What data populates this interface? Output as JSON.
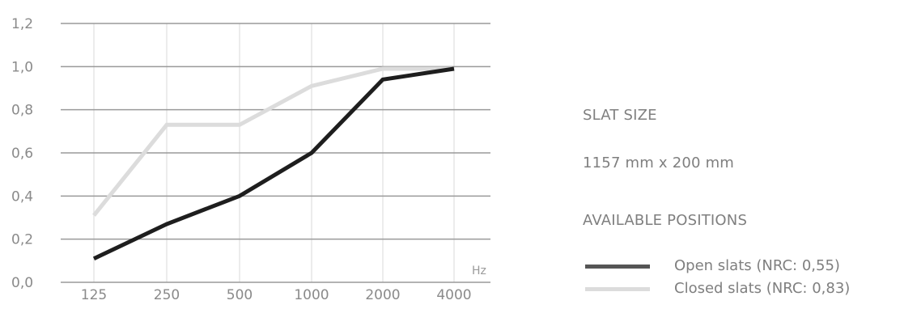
{
  "chart_data": {
    "type": "line",
    "categories": [
      "125",
      "250",
      "500",
      "1000",
      "2000",
      "4000"
    ],
    "y_ticks": [
      "0,0",
      "0,2",
      "0,4",
      "0,6",
      "0,8",
      "1,0",
      "1,2"
    ],
    "ylim": [
      0,
      1.2
    ],
    "x_unit": "Hz",
    "grid": true,
    "series": [
      {
        "name": "Open slats (NRC: 0,55)",
        "color": "#1e1e1e",
        "values": [
          0.11,
          0.27,
          0.4,
          0.6,
          0.94,
          0.99
        ]
      },
      {
        "name": "Closed slats (NRC: 0,83)",
        "color": "#dcdcdc",
        "values": [
          0.31,
          0.73,
          0.73,
          0.91,
          0.99,
          0.99
        ]
      }
    ]
  },
  "info": {
    "slat_size_heading": "SLAT SIZE",
    "slat_size_value": "1157 mm x 200 mm",
    "positions_heading": "AVAILABLE POSITIONS"
  },
  "legend": [
    {
      "label": "Open slats (NRC: 0,55)",
      "color": "#555555"
    },
    {
      "label": "Closed slats (NRC: 0,83)",
      "color": "#dcdcdc"
    }
  ]
}
